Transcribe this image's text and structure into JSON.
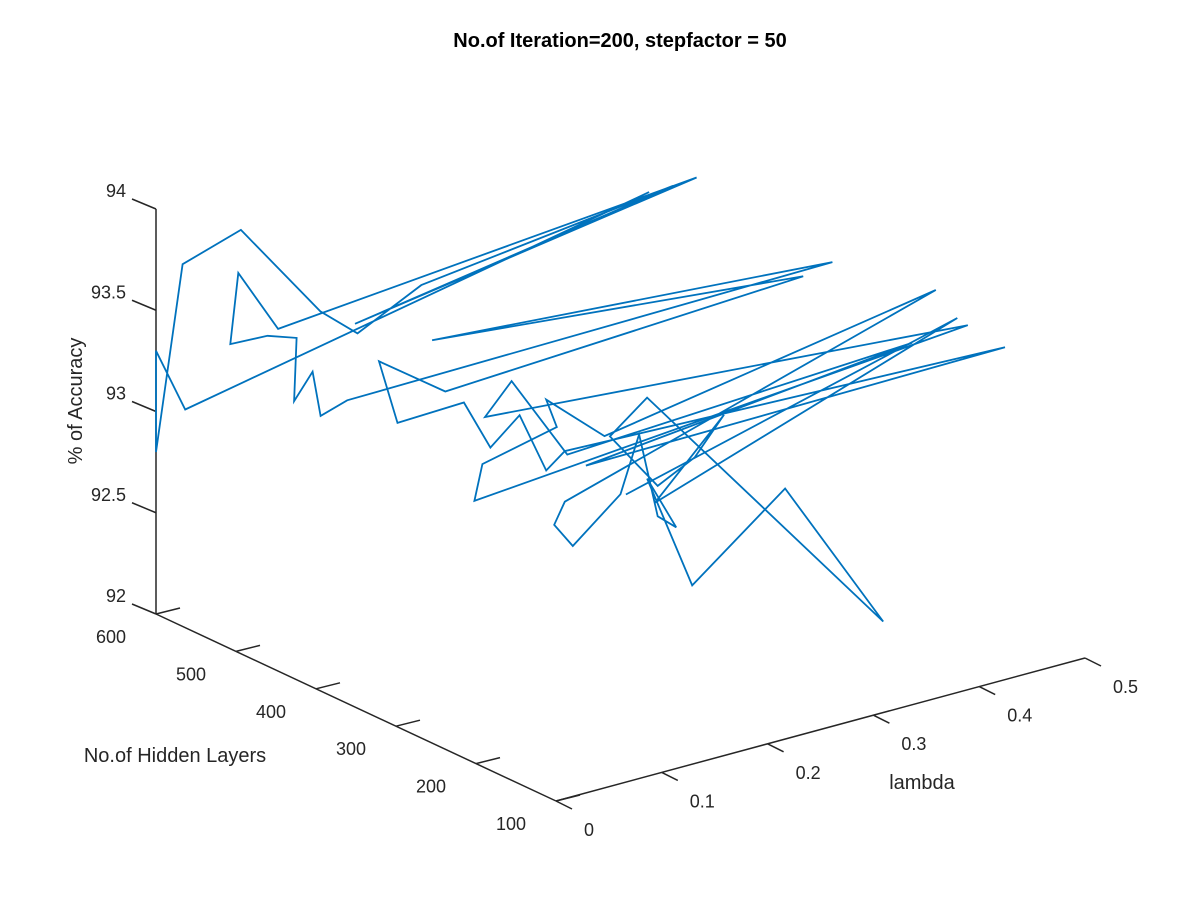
{
  "chart_data": {
    "type": "line",
    "title": "No.of Iteration=200, stepfactor = 50",
    "xlabel": "lambda",
    "ylabel": "No.of Hidden Layers",
    "zlabel": "% of Accuracy",
    "xlim": [
      0,
      0.5
    ],
    "ylim": [
      100,
      600
    ],
    "zlim": [
      92,
      94
    ],
    "xticks": [
      "0",
      "0.1",
      "0.2",
      "0.3",
      "0.4",
      "0.5"
    ],
    "yticks": [
      "100",
      "200",
      "300",
      "400",
      "500",
      "600"
    ],
    "zticks": [
      "92",
      "92.5",
      "93",
      "93.5",
      "94"
    ],
    "grid": false,
    "line_color": "#0072BD",
    "series": [
      {
        "points": [
          [
            0.33,
            420,
            93.95
          ],
          [
            0.02,
            590,
            93.0
          ],
          [
            0.0,
            600,
            93.3
          ],
          [
            0.0,
            600,
            92.8
          ],
          [
            0.01,
            580,
            93.75
          ],
          [
            0.05,
            560,
            93.9
          ],
          [
            0.11,
            540,
            93.45
          ],
          [
            0.13,
            520,
            93.35
          ],
          [
            0.16,
            480,
            93.62
          ],
          [
            0.36,
            430,
            93.92
          ],
          [
            0.12,
            510,
            93.43
          ],
          [
            0.39,
            440,
            93.9
          ],
          [
            0.07,
            540,
            93.42
          ],
          [
            0.04,
            550,
            93.72
          ],
          [
            0.04,
            560,
            93.35
          ],
          [
            0.06,
            540,
            93.4
          ],
          [
            0.08,
            530,
            93.38
          ],
          [
            0.07,
            520,
            93.1
          ],
          [
            0.08,
            510,
            93.25
          ],
          [
            0.08,
            500,
            93.05
          ],
          [
            0.09,
            480,
            93.15
          ],
          [
            0.42,
            310,
            93.68
          ],
          [
            0.14,
            440,
            93.45
          ],
          [
            0.4,
            320,
            93.62
          ],
          [
            0.16,
            450,
            93.15
          ],
          [
            0.12,
            480,
            93.3
          ],
          [
            0.13,
            470,
            93.0
          ],
          [
            0.17,
            440,
            93.1
          ],
          [
            0.18,
            420,
            92.9
          ],
          [
            0.2,
            410,
            93.05
          ],
          [
            0.21,
            390,
            92.8
          ],
          [
            0.22,
            380,
            92.9
          ],
          [
            0.25,
            360,
            92.95
          ],
          [
            0.5,
            200,
            93.35
          ],
          [
            0.24,
            380,
            92.8
          ],
          [
            0.45,
            250,
            93.35
          ],
          [
            0.23,
            390,
            92.85
          ],
          [
            0.2,
            420,
            93.2
          ],
          [
            0.19,
            440,
            93.0
          ],
          [
            0.48,
            220,
            93.45
          ],
          [
            0.18,
            440,
            92.6
          ],
          [
            0.18,
            430,
            92.8
          ],
          [
            0.22,
            390,
            93.0
          ],
          [
            0.21,
            390,
            93.15
          ],
          [
            0.25,
            370,
            92.95
          ],
          [
            0.48,
            260,
            93.55
          ],
          [
            0.22,
            380,
            92.65
          ],
          [
            0.21,
            380,
            92.55
          ],
          [
            0.22,
            370,
            92.45
          ],
          [
            0.25,
            350,
            92.7
          ],
          [
            0.26,
            340,
            93.0
          ],
          [
            0.27,
            330,
            92.6
          ],
          [
            0.28,
            320,
            92.55
          ],
          [
            0.26,
            330,
            92.8
          ],
          [
            0.28,
            300,
            92.3
          ],
          [
            0.33,
            250,
            92.8
          ],
          [
            0.4,
            220,
            92.1
          ],
          [
            0.26,
            330,
            93.2
          ],
          [
            0.24,
            350,
            93.0
          ],
          [
            0.27,
            330,
            92.75
          ],
          [
            0.29,
            310,
            92.9
          ],
          [
            0.31,
            300,
            93.1
          ],
          [
            0.26,
            320,
            92.7
          ],
          [
            0.47,
            220,
            93.5
          ],
          [
            0.24,
            330,
            92.75
          ]
        ]
      }
    ]
  }
}
